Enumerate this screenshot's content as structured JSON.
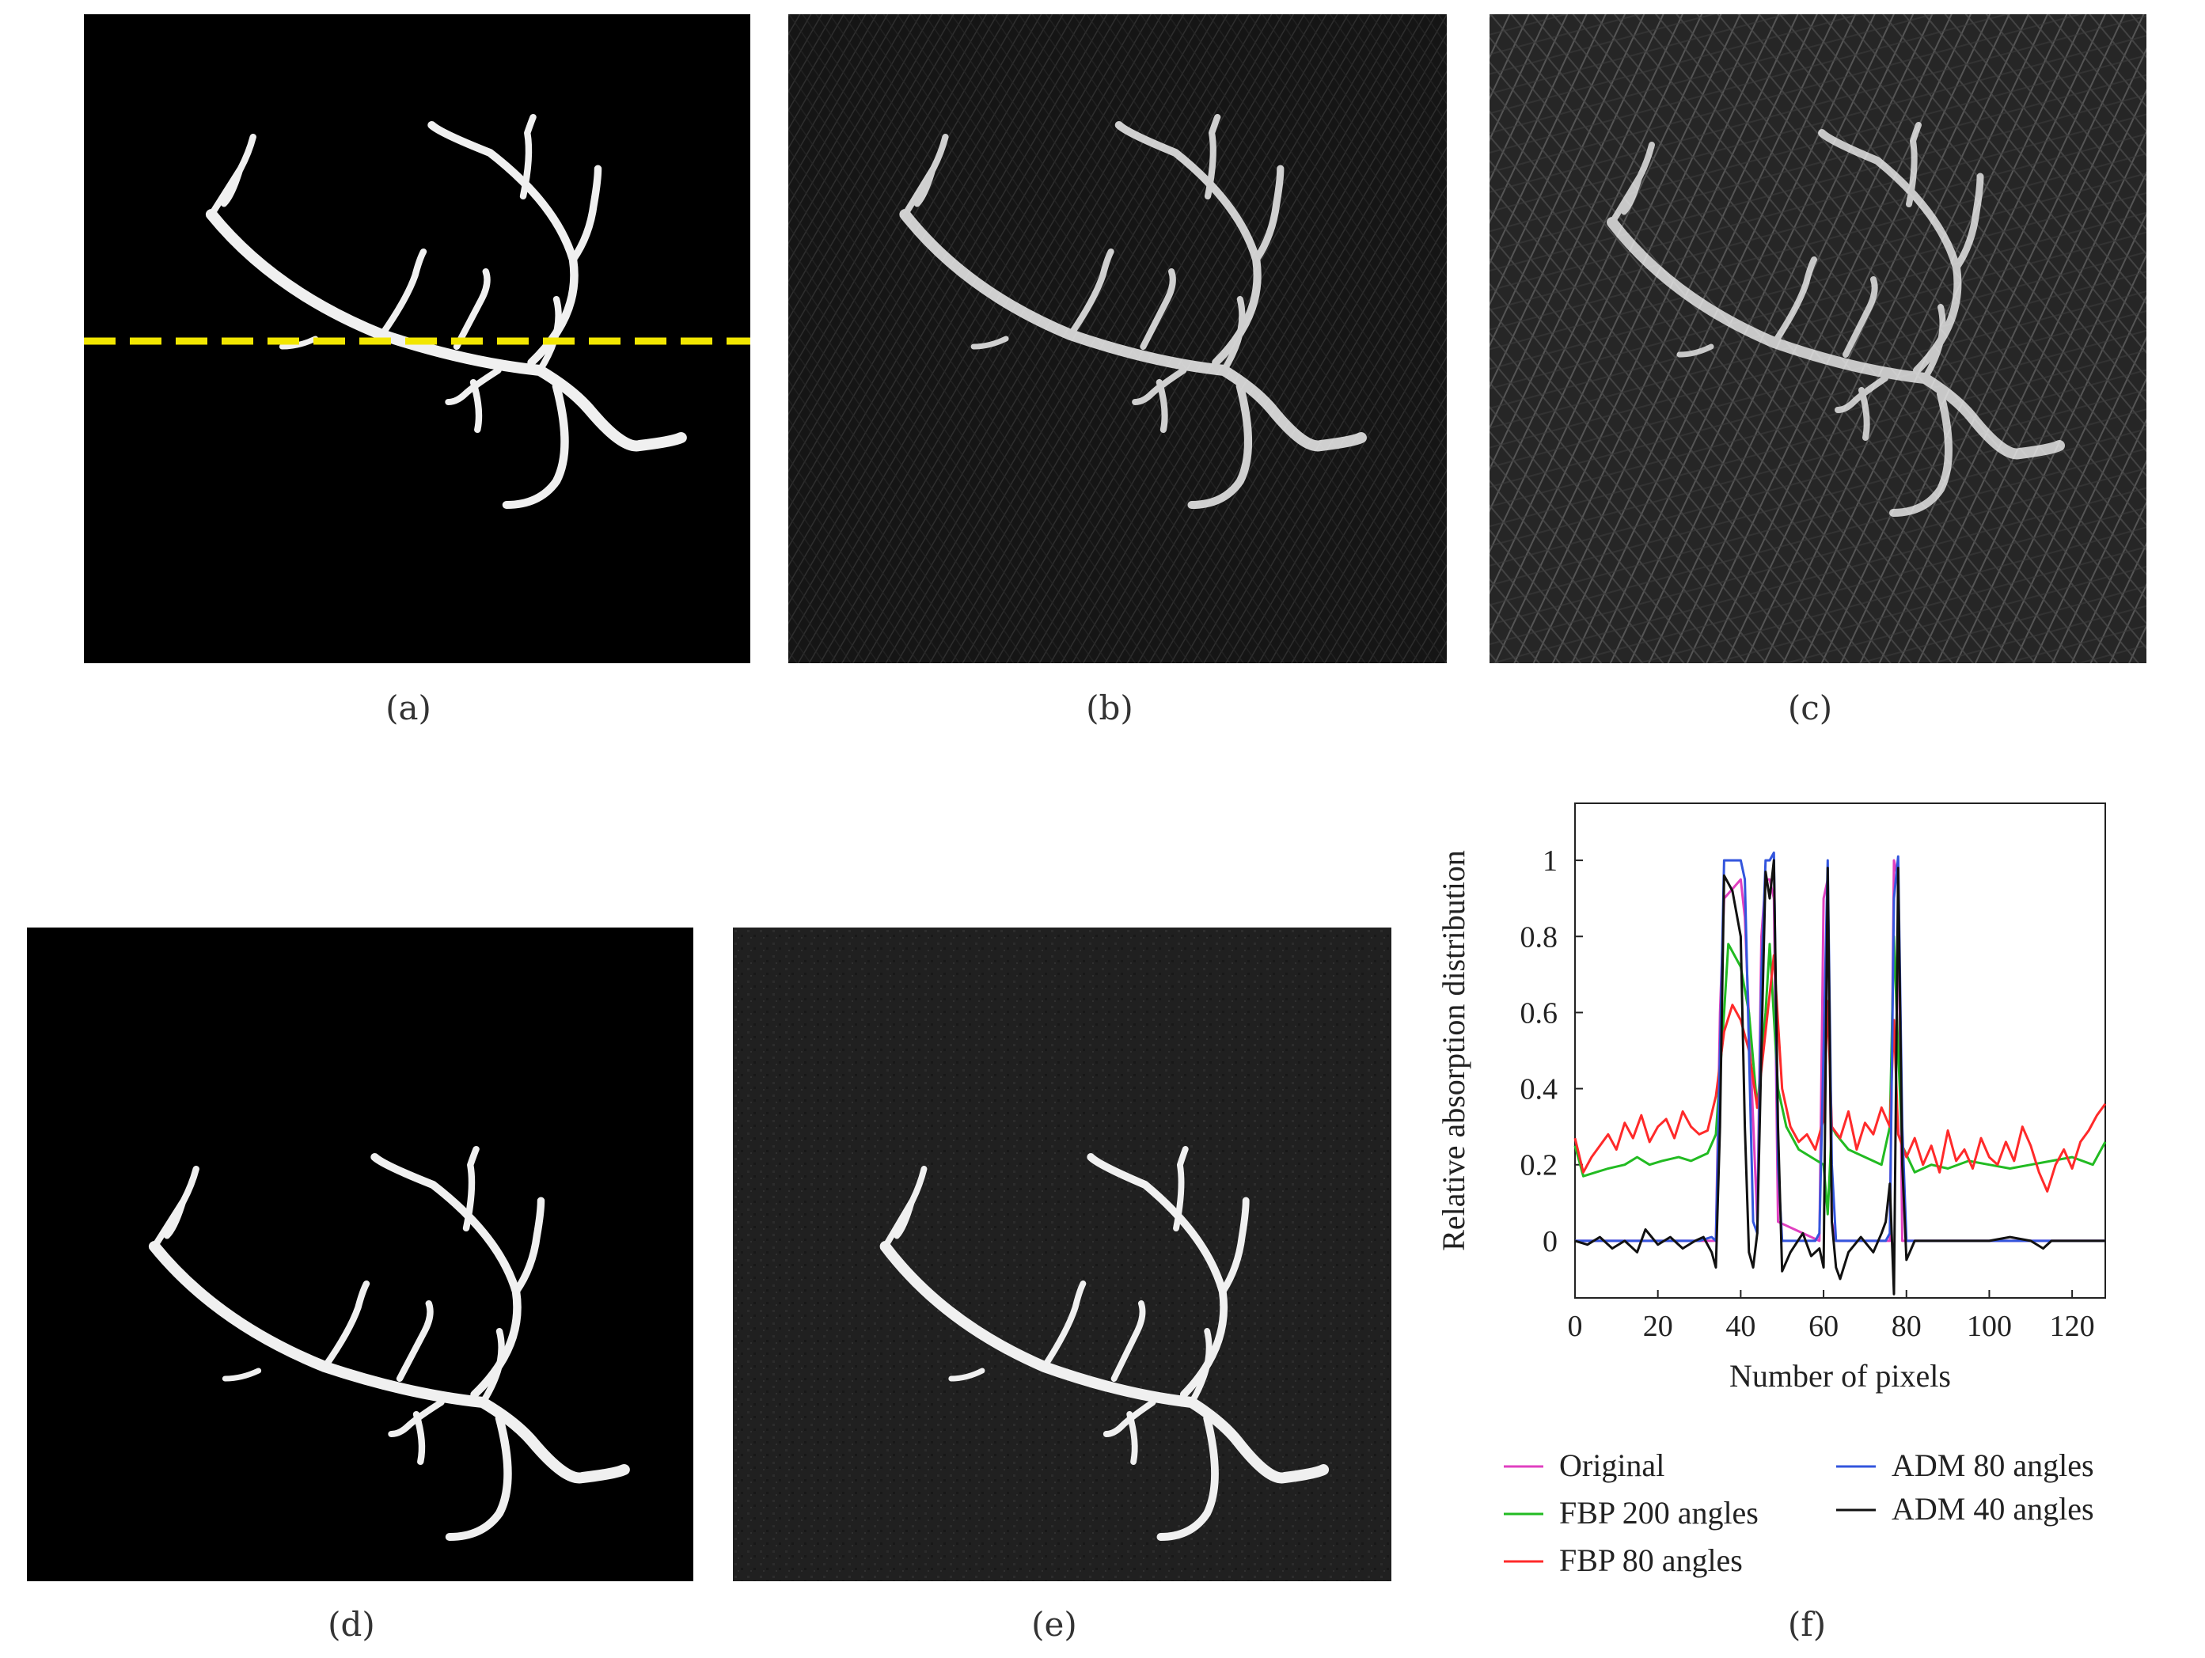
{
  "captions": {
    "a": "(a)",
    "b": "(b)",
    "c": "(c)",
    "d": "(d)",
    "e": "(e)",
    "f": "(f)"
  },
  "colors": {
    "vessel": "#f2f2f2",
    "dashed_line": "#f2e600",
    "background_black": "#000000",
    "background_dark": "#151515",
    "background_gray": "#2a2a2a"
  },
  "chart_data": {
    "type": "line",
    "title": "",
    "xlabel": "Number of pixels",
    "ylabel": "Relative absorption distribution",
    "xlim": [
      0,
      128
    ],
    "ylim": [
      -0.15,
      1.15
    ],
    "xticks": [
      0,
      20,
      40,
      60,
      80,
      100,
      120
    ],
    "yticks": [
      0,
      0.2,
      0.4,
      0.6,
      0.8,
      1
    ],
    "ytick_labels": [
      "0",
      "0.2",
      "0.4",
      "0.6",
      "0.8",
      "1"
    ],
    "grid": false,
    "legend_placement": "bottom",
    "series": [
      {
        "name": "Original",
        "color": "#e040c0",
        "x": [
          0,
          34,
          35,
          36,
          40,
          41,
          44,
          45,
          46,
          47,
          48,
          49,
          59,
          60,
          61,
          62,
          63,
          76,
          77,
          78,
          79,
          128
        ],
        "y": [
          0,
          0,
          0.6,
          0.9,
          0.95,
          0.85,
          0.05,
          0.8,
          0.95,
          0.95,
          0.9,
          0.05,
          0,
          0.9,
          0.95,
          0.05,
          0,
          0,
          1.0,
          0.95,
          0,
          0
        ]
      },
      {
        "name": "FBP 200 angles",
        "color": "#22bb22",
        "x": [
          0,
          2,
          5,
          8,
          12,
          15,
          18,
          21,
          25,
          28,
          32,
          34,
          36,
          37,
          40,
          42,
          44,
          46,
          47,
          49,
          51,
          54,
          57,
          60,
          61,
          62,
          63,
          66,
          70,
          74,
          76,
          77,
          78,
          79,
          82,
          86,
          90,
          95,
          100,
          105,
          110,
          115,
          120,
          125,
          128
        ],
        "y": [
          0.25,
          0.17,
          0.18,
          0.19,
          0.2,
          0.22,
          0.2,
          0.21,
          0.22,
          0.21,
          0.23,
          0.28,
          0.6,
          0.78,
          0.72,
          0.6,
          0.35,
          0.6,
          0.78,
          0.4,
          0.3,
          0.24,
          0.22,
          0.2,
          0.07,
          0.3,
          0.28,
          0.24,
          0.22,
          0.2,
          0.3,
          0.8,
          0.5,
          0.25,
          0.18,
          0.2,
          0.19,
          0.21,
          0.2,
          0.19,
          0.2,
          0.21,
          0.22,
          0.2,
          0.26
        ]
      },
      {
        "name": "FBP 80 angles",
        "color": "#ff2a2a",
        "x": [
          0,
          2,
          4,
          6,
          8,
          10,
          12,
          14,
          16,
          18,
          20,
          22,
          24,
          26,
          28,
          30,
          32,
          34,
          36,
          38,
          40,
          42,
          44,
          46,
          48,
          50,
          52,
          54,
          56,
          58,
          60,
          61,
          62,
          64,
          66,
          68,
          70,
          72,
          74,
          76,
          77,
          78,
          80,
          82,
          84,
          86,
          88,
          90,
          92,
          94,
          96,
          98,
          100,
          102,
          104,
          106,
          108,
          110,
          112,
          114,
          116,
          118,
          120,
          122,
          124,
          126,
          128
        ],
        "y": [
          0.27,
          0.18,
          0.22,
          0.25,
          0.28,
          0.24,
          0.31,
          0.27,
          0.33,
          0.26,
          0.3,
          0.32,
          0.27,
          0.34,
          0.3,
          0.28,
          0.29,
          0.38,
          0.55,
          0.62,
          0.58,
          0.5,
          0.35,
          0.55,
          0.75,
          0.4,
          0.3,
          0.26,
          0.28,
          0.24,
          0.32,
          0.63,
          0.3,
          0.27,
          0.34,
          0.24,
          0.31,
          0.28,
          0.35,
          0.3,
          0.58,
          0.28,
          0.22,
          0.27,
          0.2,
          0.25,
          0.18,
          0.29,
          0.21,
          0.24,
          0.19,
          0.27,
          0.22,
          0.2,
          0.26,
          0.21,
          0.3,
          0.25,
          0.18,
          0.13,
          0.2,
          0.24,
          0.19,
          0.26,
          0.29,
          0.33,
          0.36
        ]
      },
      {
        "name": "ADM 80 angles",
        "color": "#3355dd",
        "x": [
          0,
          30,
          33,
          34,
          35,
          36,
          40,
          41,
          43,
          44,
          45,
          46,
          47,
          48,
          49,
          50,
          58,
          59,
          60,
          61,
          62,
          63,
          75,
          76,
          77,
          78,
          79,
          80,
          128
        ],
        "y": [
          0,
          0,
          0.01,
          0.0,
          0.5,
          1.0,
          1.0,
          0.95,
          0.05,
          0.02,
          0.7,
          1.0,
          1.0,
          1.02,
          0.2,
          0,
          0,
          0.02,
          0.5,
          1.0,
          0.2,
          0,
          0,
          0.02,
          0.9,
          1.01,
          0.3,
          0,
          0
        ]
      },
      {
        "name": "ADM 40 angles",
        "color": "#111111",
        "x": [
          0,
          3,
          6,
          9,
          12,
          15,
          17,
          20,
          23,
          26,
          29,
          31,
          33,
          34,
          35,
          36,
          38,
          40,
          41,
          42,
          43,
          44,
          45,
          46,
          47,
          48,
          49,
          50,
          52,
          55,
          57,
          59,
          60,
          61,
          62,
          63,
          64,
          66,
          69,
          72,
          74,
          75,
          76,
          77,
          78,
          79,
          80,
          82,
          86,
          90,
          95,
          100,
          105,
          110,
          113,
          115,
          120,
          128
        ],
        "y": [
          0.0,
          -0.01,
          0.01,
          -0.02,
          0.0,
          -0.03,
          0.03,
          -0.01,
          0.01,
          -0.02,
          0.0,
          0.01,
          -0.03,
          -0.07,
          0.3,
          0.96,
          0.92,
          0.8,
          0.3,
          -0.03,
          -0.07,
          0.02,
          0.5,
          0.97,
          0.9,
          1.0,
          0.3,
          -0.08,
          -0.03,
          0.02,
          -0.04,
          -0.02,
          -0.07,
          0.98,
          0.05,
          -0.07,
          -0.1,
          -0.03,
          0.01,
          -0.03,
          0.02,
          0.05,
          0.15,
          -0.14,
          0.98,
          0.2,
          -0.05,
          0.0,
          0.0,
          0.0,
          0.0,
          0.0,
          0.01,
          0.0,
          -0.02,
          0.0,
          0.0,
          0.0
        ]
      }
    ]
  }
}
